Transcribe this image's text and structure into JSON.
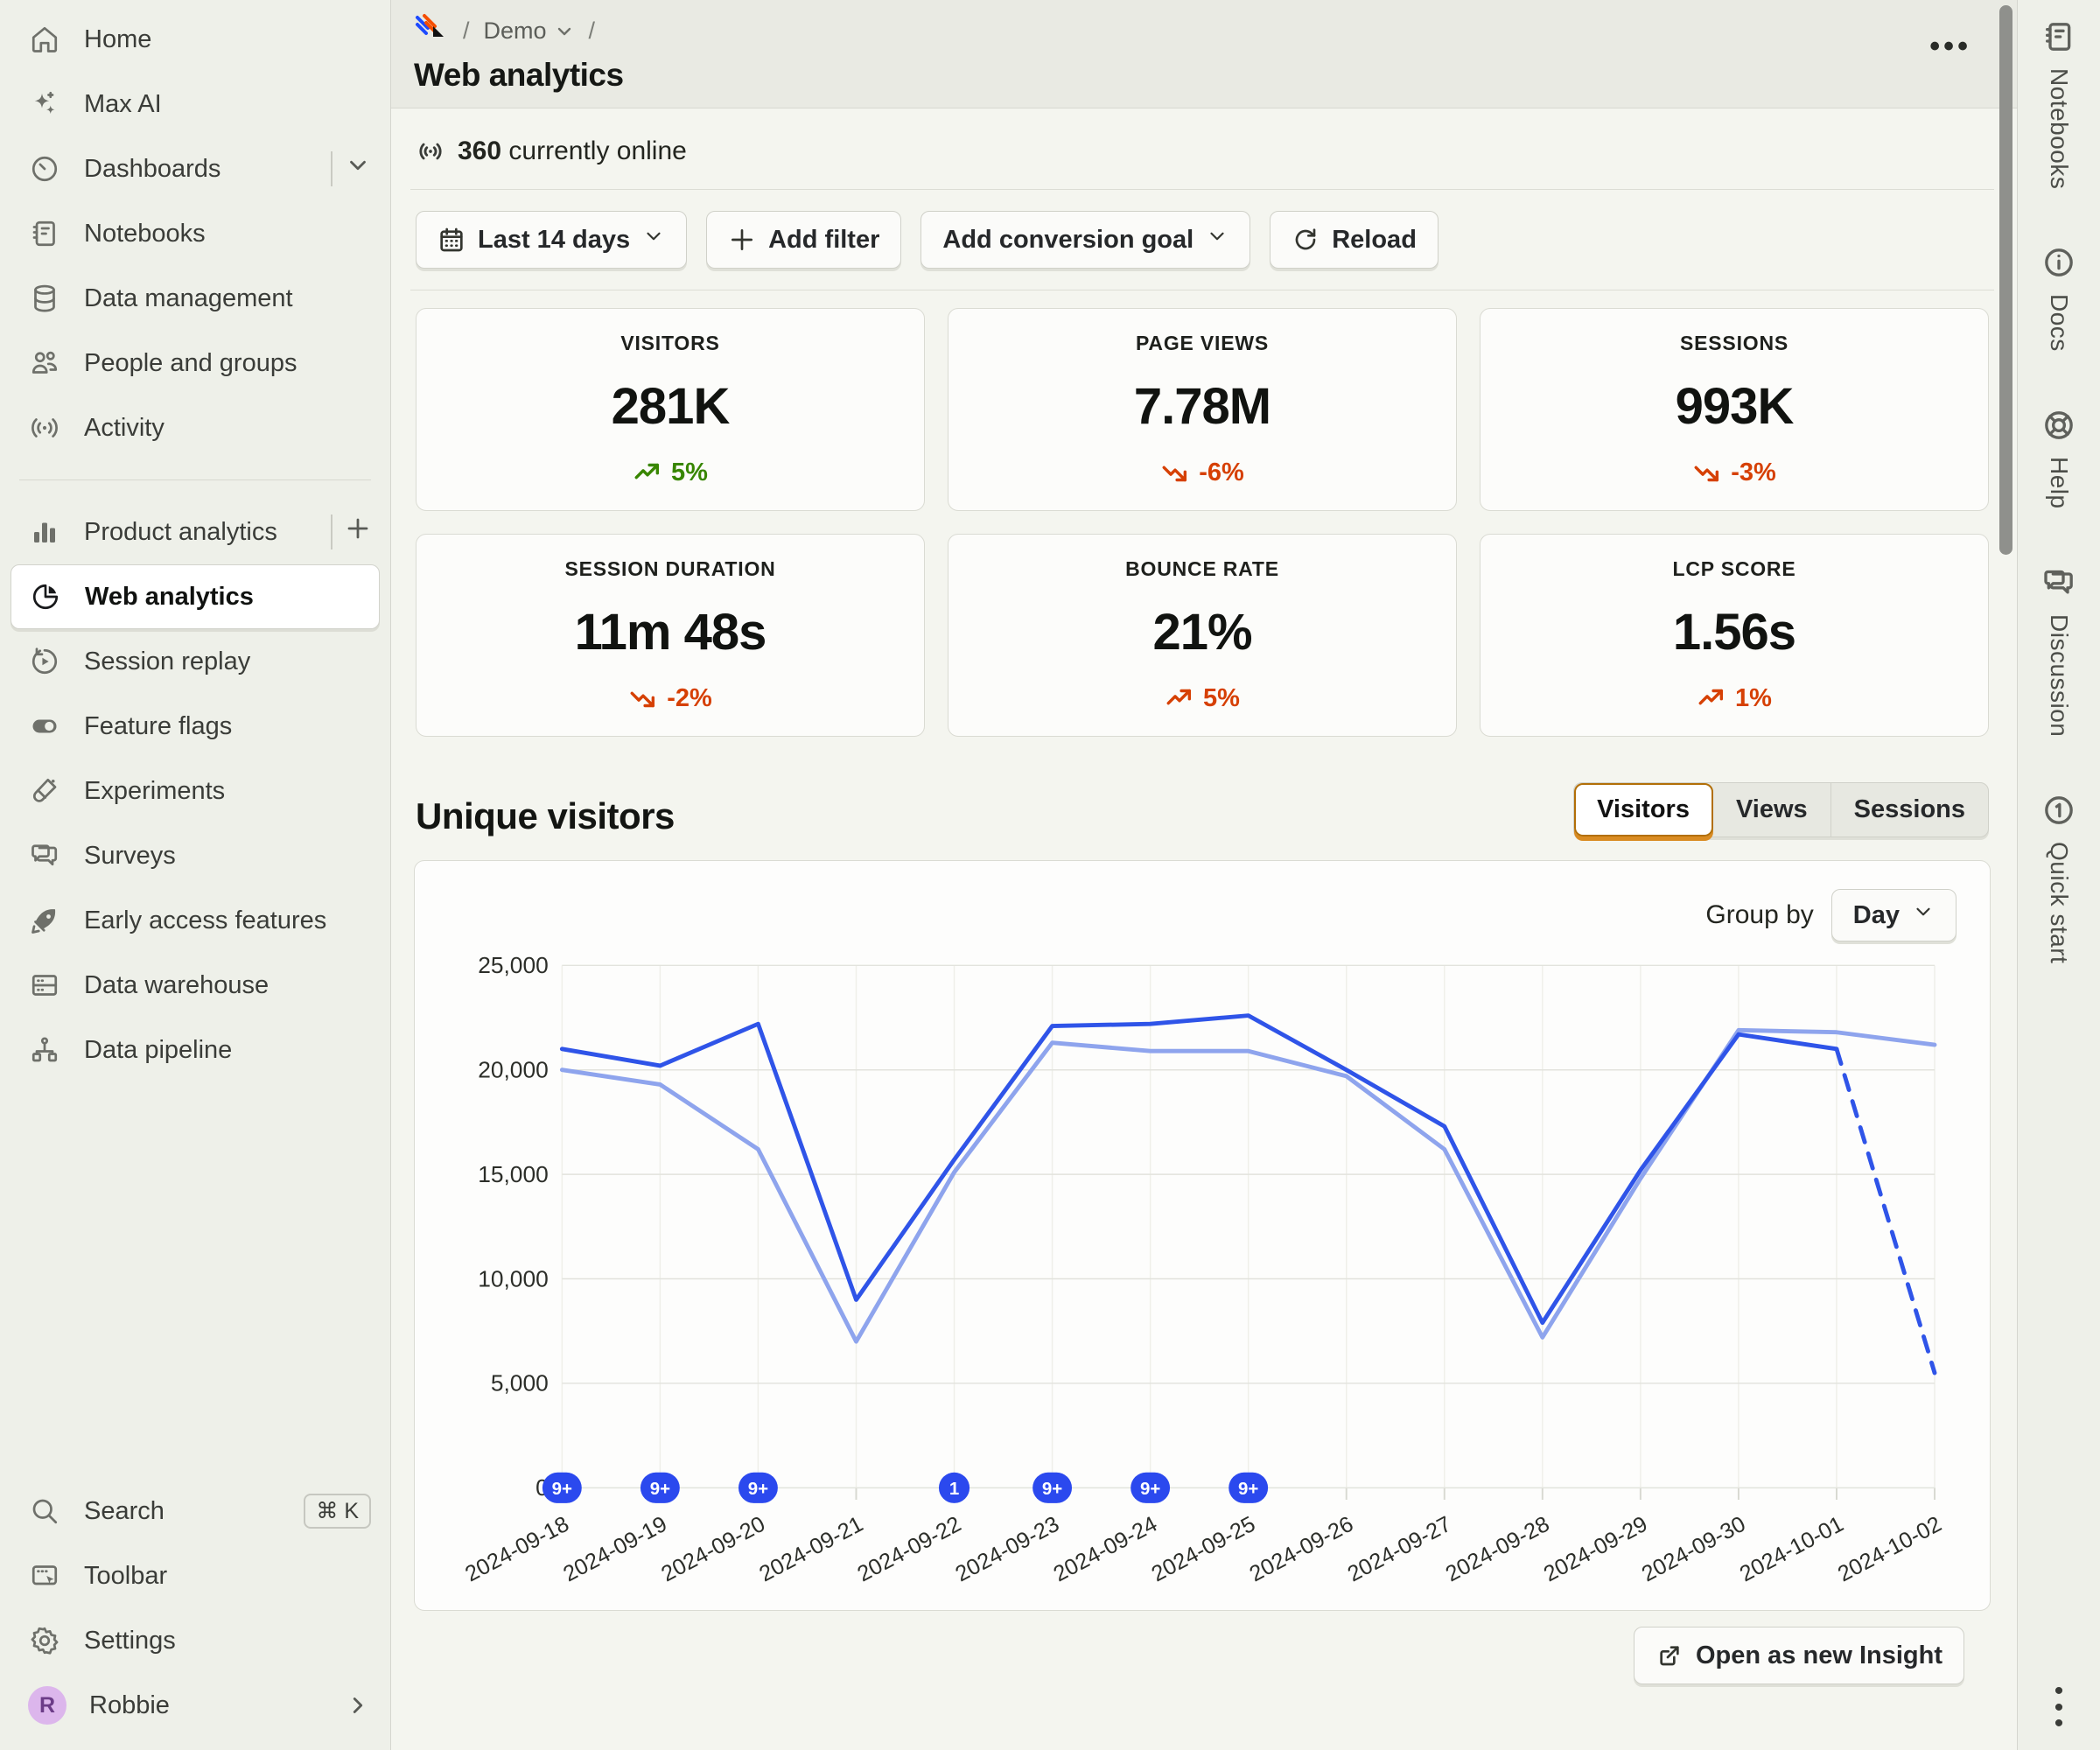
{
  "breadcrumb": {
    "project": "Demo"
  },
  "page": {
    "title": "Web analytics",
    "online_count": "360",
    "online_suffix": "currently online",
    "more_label": "..."
  },
  "toolbar": {
    "date_range": "Last 14 days",
    "add_filter": "Add filter",
    "add_conversion_goal": "Add conversion goal",
    "reload": "Reload"
  },
  "sidebar": {
    "items_top": [
      {
        "label": "Home"
      },
      {
        "label": "Max AI"
      },
      {
        "label": "Dashboards"
      },
      {
        "label": "Notebooks"
      },
      {
        "label": "Data management"
      },
      {
        "label": "People and groups"
      },
      {
        "label": "Activity"
      }
    ],
    "items_products": [
      {
        "label": "Product analytics"
      },
      {
        "label": "Web analytics"
      },
      {
        "label": "Session replay"
      },
      {
        "label": "Feature flags"
      },
      {
        "label": "Experiments"
      },
      {
        "label": "Surveys"
      },
      {
        "label": "Early access features"
      },
      {
        "label": "Data warehouse"
      },
      {
        "label": "Data pipeline"
      }
    ],
    "active_item": "Web analytics",
    "items_bottom": [
      {
        "label": "Search",
        "kbd": "⌘ K"
      },
      {
        "label": "Toolbar"
      },
      {
        "label": "Settings"
      }
    ],
    "user": {
      "name": "Robbie",
      "initial": "R"
    }
  },
  "metrics": [
    {
      "label": "VISITORS",
      "value": "281K",
      "delta": "5%",
      "direction": "up",
      "tone": "good"
    },
    {
      "label": "PAGE VIEWS",
      "value": "7.78M",
      "delta": "-6%",
      "direction": "down",
      "tone": "bad"
    },
    {
      "label": "SESSIONS",
      "value": "993K",
      "delta": "-3%",
      "direction": "down",
      "tone": "bad"
    },
    {
      "label": "SESSION DURATION",
      "value": "11m 48s",
      "delta": "-2%",
      "direction": "down",
      "tone": "bad"
    },
    {
      "label": "BOUNCE RATE",
      "value": "21%",
      "delta": "5%",
      "direction": "up",
      "tone": "bad"
    },
    {
      "label": "LCP SCORE",
      "value": "1.56s",
      "delta": "1%",
      "direction": "up",
      "tone": "bad"
    }
  ],
  "section": {
    "title": "Unique visitors",
    "tabs": [
      "Visitors",
      "Views",
      "Sessions"
    ],
    "active_tab": "Visitors",
    "group_by_label": "Group by",
    "group_by_value": "Day"
  },
  "chart_data": {
    "type": "line",
    "title": "Unique visitors",
    "x": [
      "2024-09-18",
      "2024-09-19",
      "2024-09-20",
      "2024-09-21",
      "2024-09-22",
      "2024-09-23",
      "2024-09-24",
      "2024-09-25",
      "2024-09-26",
      "2024-09-27",
      "2024-09-28",
      "2024-09-29",
      "2024-09-30",
      "2024-10-01",
      "2024-10-02"
    ],
    "series": [
      {
        "name": "Unique visitors (current period)",
        "color": "#2f54e8",
        "values": [
          21000,
          20200,
          22200,
          9000,
          15700,
          22100,
          22200,
          22600,
          20000,
          17300,
          7900,
          15200,
          21700,
          21000,
          5500
        ],
        "dashed_from_index": 13
      },
      {
        "name": "Unique visitors (previous period)",
        "color": "#8ea4ed",
        "values": [
          20000,
          19300,
          16200,
          7000,
          15100,
          21300,
          20900,
          20900,
          19700,
          16200,
          7200,
          14800,
          21900,
          21800,
          21200
        ]
      }
    ],
    "ylim": [
      0,
      25000
    ],
    "yticks": [
      0,
      5000,
      10000,
      15000,
      20000,
      25000
    ],
    "grid": true,
    "legend_position": "none",
    "annotations": [
      {
        "index": 0,
        "label": "9+"
      },
      {
        "index": 1,
        "label": "9+"
      },
      {
        "index": 2,
        "label": "9+"
      },
      {
        "index": 4,
        "label": "1"
      },
      {
        "index": 5,
        "label": "9+"
      },
      {
        "index": 6,
        "label": "9+"
      },
      {
        "index": 7,
        "label": "9+"
      }
    ]
  },
  "footer": {
    "open_insight": "Open as new Insight"
  },
  "right_rail": {
    "items": [
      {
        "label": "Notebooks"
      },
      {
        "label": "Docs"
      },
      {
        "label": "Help"
      },
      {
        "label": "Discussion"
      },
      {
        "label": "Quick start",
        "badge": "1"
      }
    ]
  },
  "colors": {
    "accent_orange": "#b26f08",
    "line_current": "#2f54e8",
    "line_previous": "#8ea4ed",
    "good": "#388600",
    "bad": "#d64004",
    "badge_blue": "#2b49ee"
  }
}
